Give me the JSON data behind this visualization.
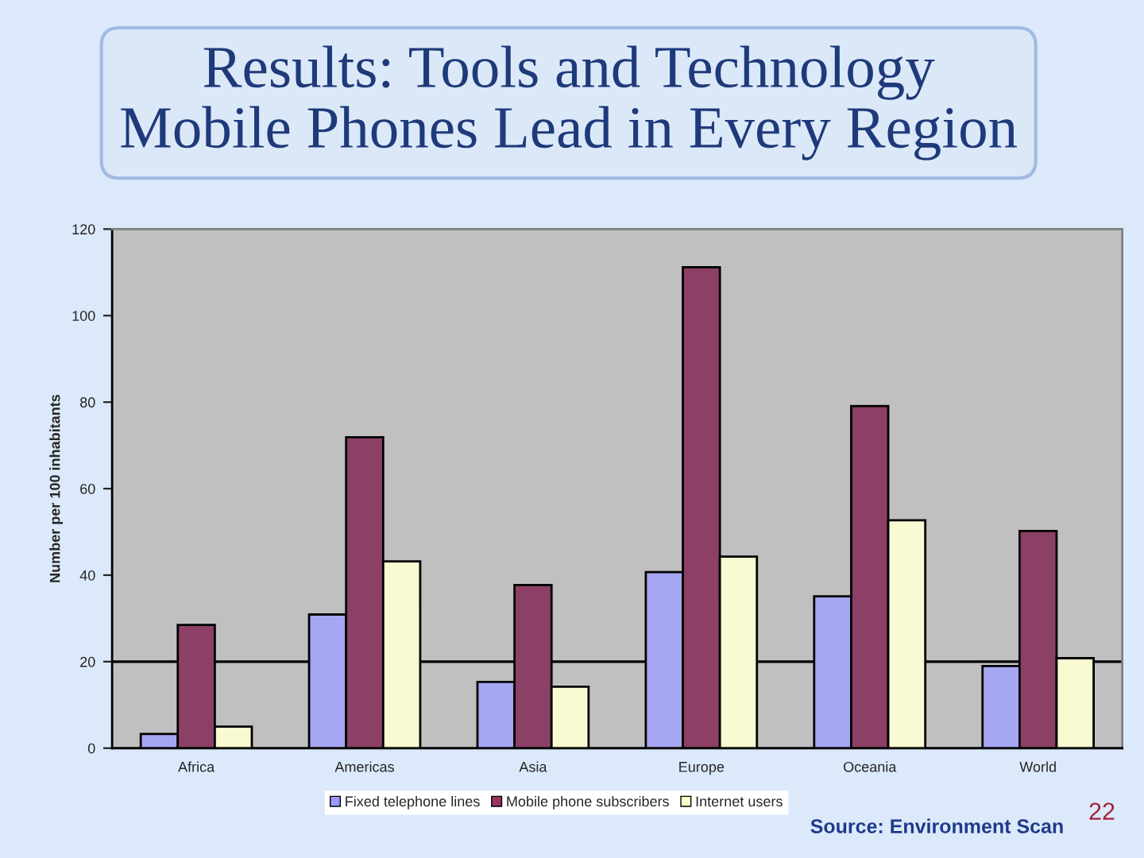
{
  "chart_data": {
    "type": "bar",
    "title": "Results: Tools and Technology\nMobile Phones Lead in Every Region",
    "ylabel": "Number per 100 inhabitants",
    "categories": [
      "Africa",
      "Americas",
      "Asia",
      "Europe",
      "Oceania",
      "World"
    ],
    "series": [
      {
        "name": "Fixed telephone lines",
        "color": "#9999ff",
        "values": [
          3.3,
          30.9,
          15.3,
          40.7,
          35.1,
          19.0
        ]
      },
      {
        "name": "Mobile phone subscribers",
        "color": "#993366",
        "values": [
          28.5,
          71.9,
          37.7,
          111.2,
          79.1,
          50.2
        ]
      },
      {
        "name": "Internet users",
        "color": "#ffffcc",
        "values": [
          5.0,
          43.2,
          14.2,
          44.3,
          52.7,
          20.8
        ]
      }
    ],
    "ylim": [
      0,
      120
    ],
    "yticks": [
      0,
      20,
      40,
      60,
      80,
      100,
      120
    ],
    "ref_lines": [
      {
        "axis": "y",
        "value": 20,
        "color": "#000000"
      }
    ],
    "legend": "bottom",
    "annotations": [
      "Source: Environment Scan",
      "22"
    ]
  }
}
